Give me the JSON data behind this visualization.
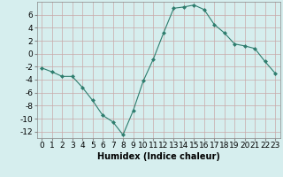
{
  "x": [
    0,
    1,
    2,
    3,
    4,
    5,
    6,
    7,
    8,
    9,
    10,
    11,
    12,
    13,
    14,
    15,
    16,
    17,
    18,
    19,
    20,
    21,
    22,
    23
  ],
  "y": [
    -2.2,
    -2.8,
    -3.5,
    -3.5,
    -5.2,
    -7.2,
    -9.5,
    -10.5,
    -12.5,
    -8.8,
    -4.2,
    -0.8,
    3.2,
    7.0,
    7.2,
    7.5,
    6.8,
    4.5,
    3.2,
    1.5,
    1.2,
    0.8,
    -1.2,
    -3.0
  ],
  "line_color": "#2e7d6e",
  "marker": "D",
  "marker_size": 2,
  "bg_color": "#d6eeee",
  "grid_color": "#c8dede",
  "xlabel": "Humidex (Indice chaleur)",
  "xlim": [
    -0.5,
    23.5
  ],
  "ylim": [
    -13,
    8
  ],
  "yticks": [
    -12,
    -10,
    -8,
    -6,
    -4,
    -2,
    0,
    2,
    4,
    6
  ],
  "xticks": [
    0,
    1,
    2,
    3,
    4,
    5,
    6,
    7,
    8,
    9,
    10,
    11,
    12,
    13,
    14,
    15,
    16,
    17,
    18,
    19,
    20,
    21,
    22,
    23
  ],
  "xtick_labels": [
    "0",
    "1",
    "2",
    "3",
    "4",
    "5",
    "6",
    "7",
    "8",
    "9",
    "10",
    "11",
    "12",
    "13",
    "14",
    "15",
    "16",
    "17",
    "18",
    "19",
    "20",
    "21",
    "22",
    "23"
  ],
  "label_fontsize": 7,
  "tick_fontsize": 6.5
}
